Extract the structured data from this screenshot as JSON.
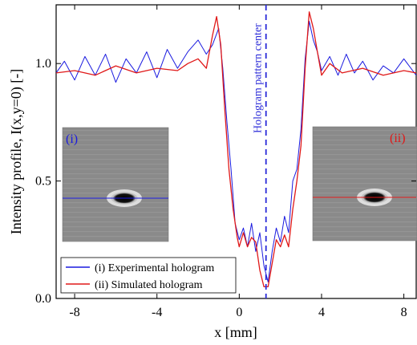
{
  "chart_data": {
    "type": "line",
    "xlabel": "x [mm]",
    "ylabel": "Intensity profile, I(x,y=0) [-]",
    "xlim": [
      -8.9,
      8.6
    ],
    "ylim": [
      0.0,
      1.25
    ],
    "xticks": [
      -8,
      -4,
      0,
      4,
      8
    ],
    "xtick_labels": [
      "-8",
      "-4",
      "0",
      "4",
      "8"
    ],
    "yticks": [
      0.0,
      0.5,
      1.0
    ],
    "ytick_labels": [
      "0.0",
      "0.5",
      "1.0"
    ],
    "center_line": {
      "x": 1.3,
      "label": "Hologram pattern center",
      "color": "#2a2ad8"
    },
    "legend": {
      "placement": "bottom-left"
    },
    "series": [
      {
        "name": "(i) Experimental hologram",
        "color": "#1a1adf",
        "x": [
          -8.9,
          -8.5,
          -8.0,
          -7.5,
          -7.0,
          -6.5,
          -6.0,
          -5.5,
          -5.0,
          -4.5,
          -4.0,
          -3.5,
          -3.0,
          -2.5,
          -2.0,
          -1.6,
          -1.3,
          -1.0,
          -0.8,
          -0.6,
          -0.4,
          -0.2,
          0.0,
          0.2,
          0.4,
          0.6,
          0.8,
          1.0,
          1.2,
          1.4,
          1.6,
          1.8,
          2.0,
          2.2,
          2.4,
          2.6,
          2.8,
          3.0,
          3.2,
          3.4,
          3.6,
          3.8,
          4.0,
          4.4,
          4.8,
          5.2,
          5.6,
          6.0,
          6.5,
          7.0,
          7.5,
          8.0,
          8.6
        ],
        "y": [
          0.96,
          1.01,
          0.93,
          1.03,
          0.95,
          1.04,
          0.92,
          1.02,
          0.96,
          1.05,
          0.94,
          1.06,
          0.98,
          1.05,
          1.1,
          1.04,
          1.08,
          1.15,
          0.98,
          0.75,
          0.55,
          0.32,
          0.25,
          0.3,
          0.22,
          0.32,
          0.2,
          0.28,
          0.14,
          0.07,
          0.2,
          0.3,
          0.24,
          0.35,
          0.28,
          0.5,
          0.55,
          0.72,
          1.02,
          1.18,
          1.1,
          1.05,
          0.97,
          1.03,
          0.95,
          1.04,
          0.96,
          1.01,
          0.93,
          0.99,
          0.96,
          1.02,
          0.95
        ]
      },
      {
        "name": "(ii) Simulated hologram",
        "color": "#e01818",
        "x": [
          -8.9,
          -8.0,
          -7.0,
          -6.0,
          -5.0,
          -4.0,
          -3.0,
          -2.5,
          -2.0,
          -1.6,
          -1.3,
          -1.1,
          -0.9,
          -0.7,
          -0.5,
          -0.3,
          -0.1,
          0.0,
          0.2,
          0.4,
          0.6,
          0.8,
          1.0,
          1.2,
          1.4,
          1.6,
          1.8,
          2.0,
          2.2,
          2.4,
          2.6,
          2.8,
          3.0,
          3.2,
          3.4,
          3.6,
          3.8,
          4.0,
          4.4,
          5.0,
          6.0,
          7.0,
          8.0,
          8.6
        ],
        "y": [
          0.96,
          0.97,
          0.95,
          0.99,
          0.96,
          0.98,
          0.97,
          1.0,
          1.02,
          0.98,
          1.12,
          1.2,
          1.08,
          0.8,
          0.55,
          0.38,
          0.26,
          0.22,
          0.28,
          0.22,
          0.26,
          0.24,
          0.12,
          0.05,
          0.05,
          0.15,
          0.25,
          0.22,
          0.27,
          0.22,
          0.38,
          0.5,
          0.65,
          0.98,
          1.22,
          1.15,
          1.05,
          0.95,
          1.0,
          0.96,
          0.98,
          0.95,
          0.97,
          0.96
        ]
      }
    ]
  },
  "insets": [
    {
      "label": "(i)",
      "label_color": "#1a1adf",
      "line_color": "#1a1adf"
    },
    {
      "label": "(ii)",
      "label_color": "#e01818",
      "line_color": "#e01818"
    }
  ]
}
